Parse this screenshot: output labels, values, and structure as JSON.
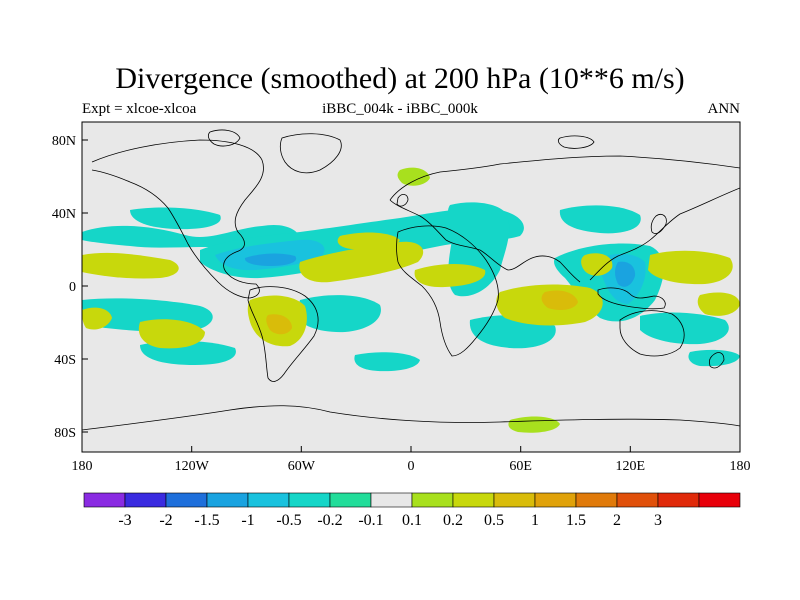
{
  "title": "Divergence (smoothed) at 200 hPa (10**6 m/s)",
  "subtitle_left": "Expt = xlcoe-xlcoa",
  "subtitle_center": "iBBC_004k - iBBC_000k",
  "subtitle_right": "ANN",
  "lat_ticks": [
    "80N",
    "40N",
    "0",
    "40S",
    "80S"
  ],
  "lon_ticks": [
    "180",
    "120W",
    "60W",
    "0",
    "60E",
    "120E",
    "180"
  ],
  "colorbar": {
    "colors": [
      "#8a2be2",
      "#3a2be0",
      "#1e6fdb",
      "#1aa3e0",
      "#19c2de",
      "#15d6c8",
      "#22dd9a",
      "#e8e8e8",
      "#a8e01e",
      "#c8d80c",
      "#d9bc0a",
      "#e0a20a",
      "#e07a0a",
      "#e0500a",
      "#e02a0a",
      "#e8000a"
    ],
    "labels": [
      "-3",
      "-2",
      "-1.5",
      "-1",
      "-0.5",
      "-0.2",
      "-0.1",
      "0.1",
      "0.2",
      "0.5",
      "1",
      "1.5",
      "2",
      "3"
    ]
  },
  "colors": {
    "background": "#e8e8e8",
    "coast": "#000000"
  }
}
